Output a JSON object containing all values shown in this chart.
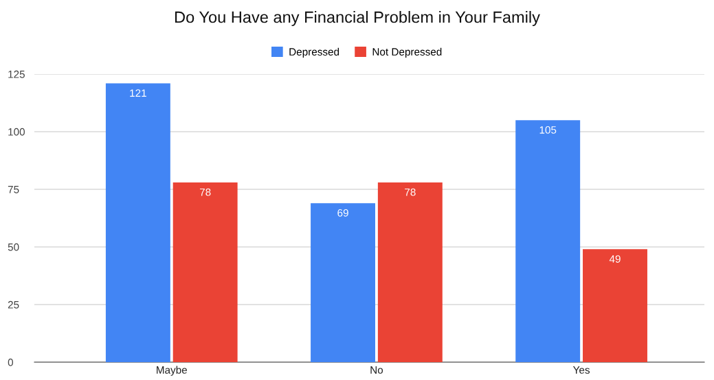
{
  "chart_data": {
    "type": "bar",
    "title": "Do You Have any Financial Problem in Your Family",
    "categories": [
      "Maybe",
      "No",
      "Yes"
    ],
    "series": [
      {
        "name": "Depressed",
        "color": "#4285f4",
        "values": [
          121,
          69,
          105
        ]
      },
      {
        "name": "Not Depressed",
        "color": "#ea4335",
        "values": [
          78,
          78,
          49
        ]
      }
    ],
    "ylim": [
      0,
      125
    ],
    "yticks": [
      0,
      25,
      50,
      75,
      100,
      125
    ],
    "grid": "y",
    "legend": "top",
    "data_labels": true
  }
}
